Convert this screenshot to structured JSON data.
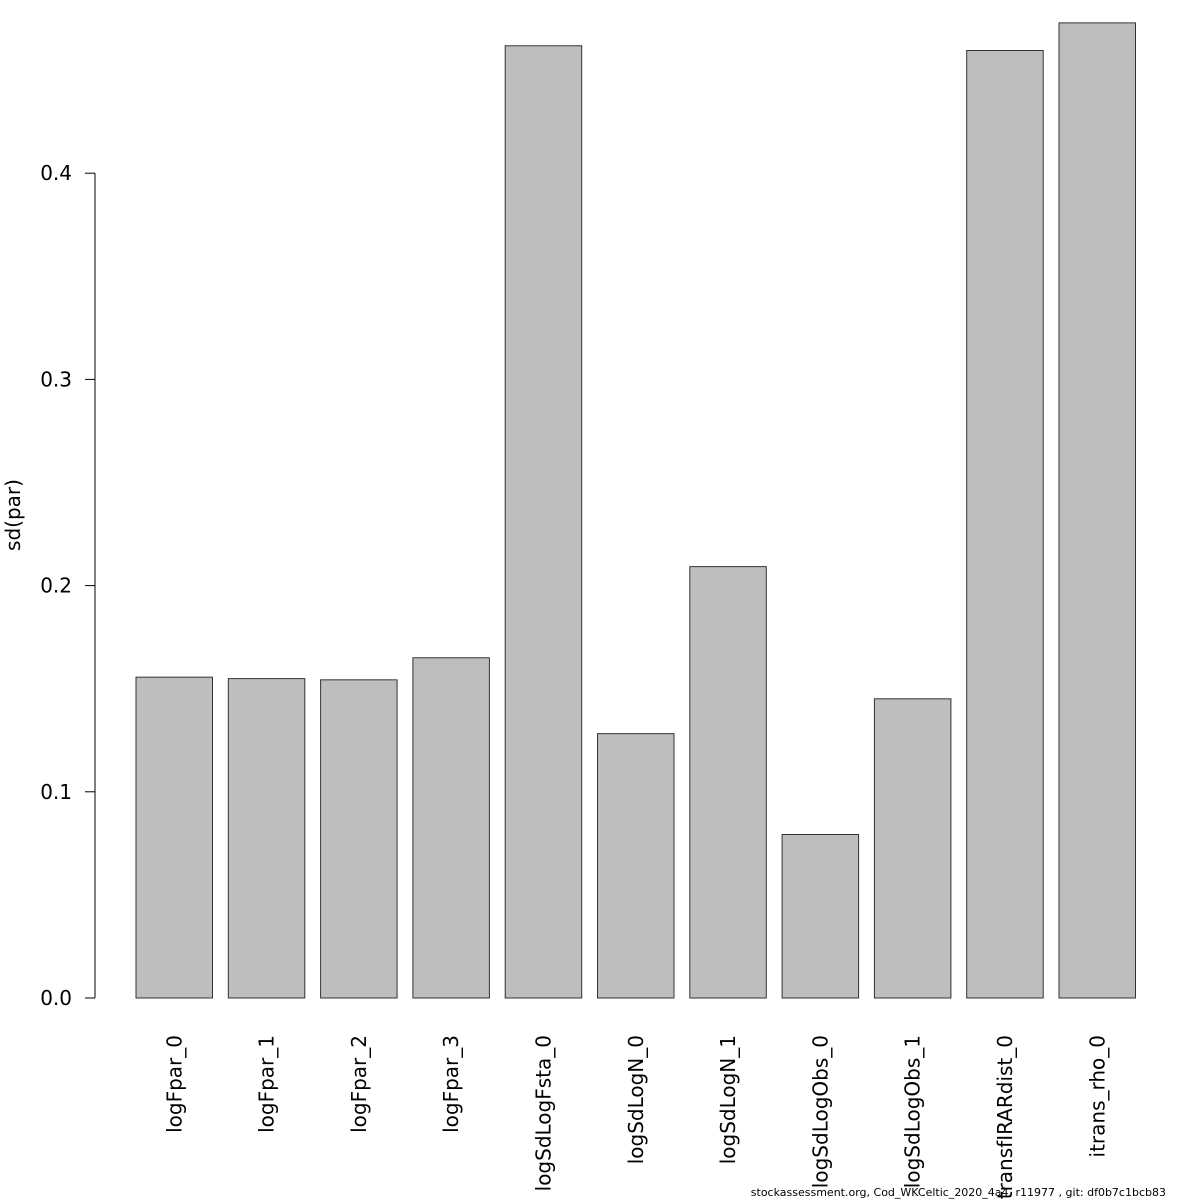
{
  "chart_data": {
    "type": "bar",
    "categories": [
      "logFpar_0",
      "logFpar_1",
      "logFpar_2",
      "logFpar_3",
      "logSdLogFsta_0",
      "logSdLogN_0",
      "logSdLogN_1",
      "logSdLogObs_0",
      "logSdLogObs_1",
      "transfIRARdist_0",
      "itrans_rho_0"
    ],
    "values": [
      0.1556,
      0.1549,
      0.1543,
      0.165,
      0.4618,
      0.1282,
      0.2092,
      0.0793,
      0.1451,
      0.4595,
      0.4729
    ],
    "ylabel": "sd(par)",
    "xlabel": "",
    "ylim": [
      0,
      0.48
    ],
    "yticks": [
      0.0,
      0.1,
      0.2,
      0.3,
      0.4
    ],
    "ytick_labels": [
      "0.0",
      "0.1",
      "0.2",
      "0.3",
      "0.4"
    ],
    "bar_fill": "#bebebe",
    "bar_stroke": "#333333",
    "grid": false,
    "legend": "none"
  },
  "footer": {
    "text": "stockassessment.org, Cod_WKCeltic_2020_4a4, r11977 , git: df0b7c1bcb83"
  }
}
